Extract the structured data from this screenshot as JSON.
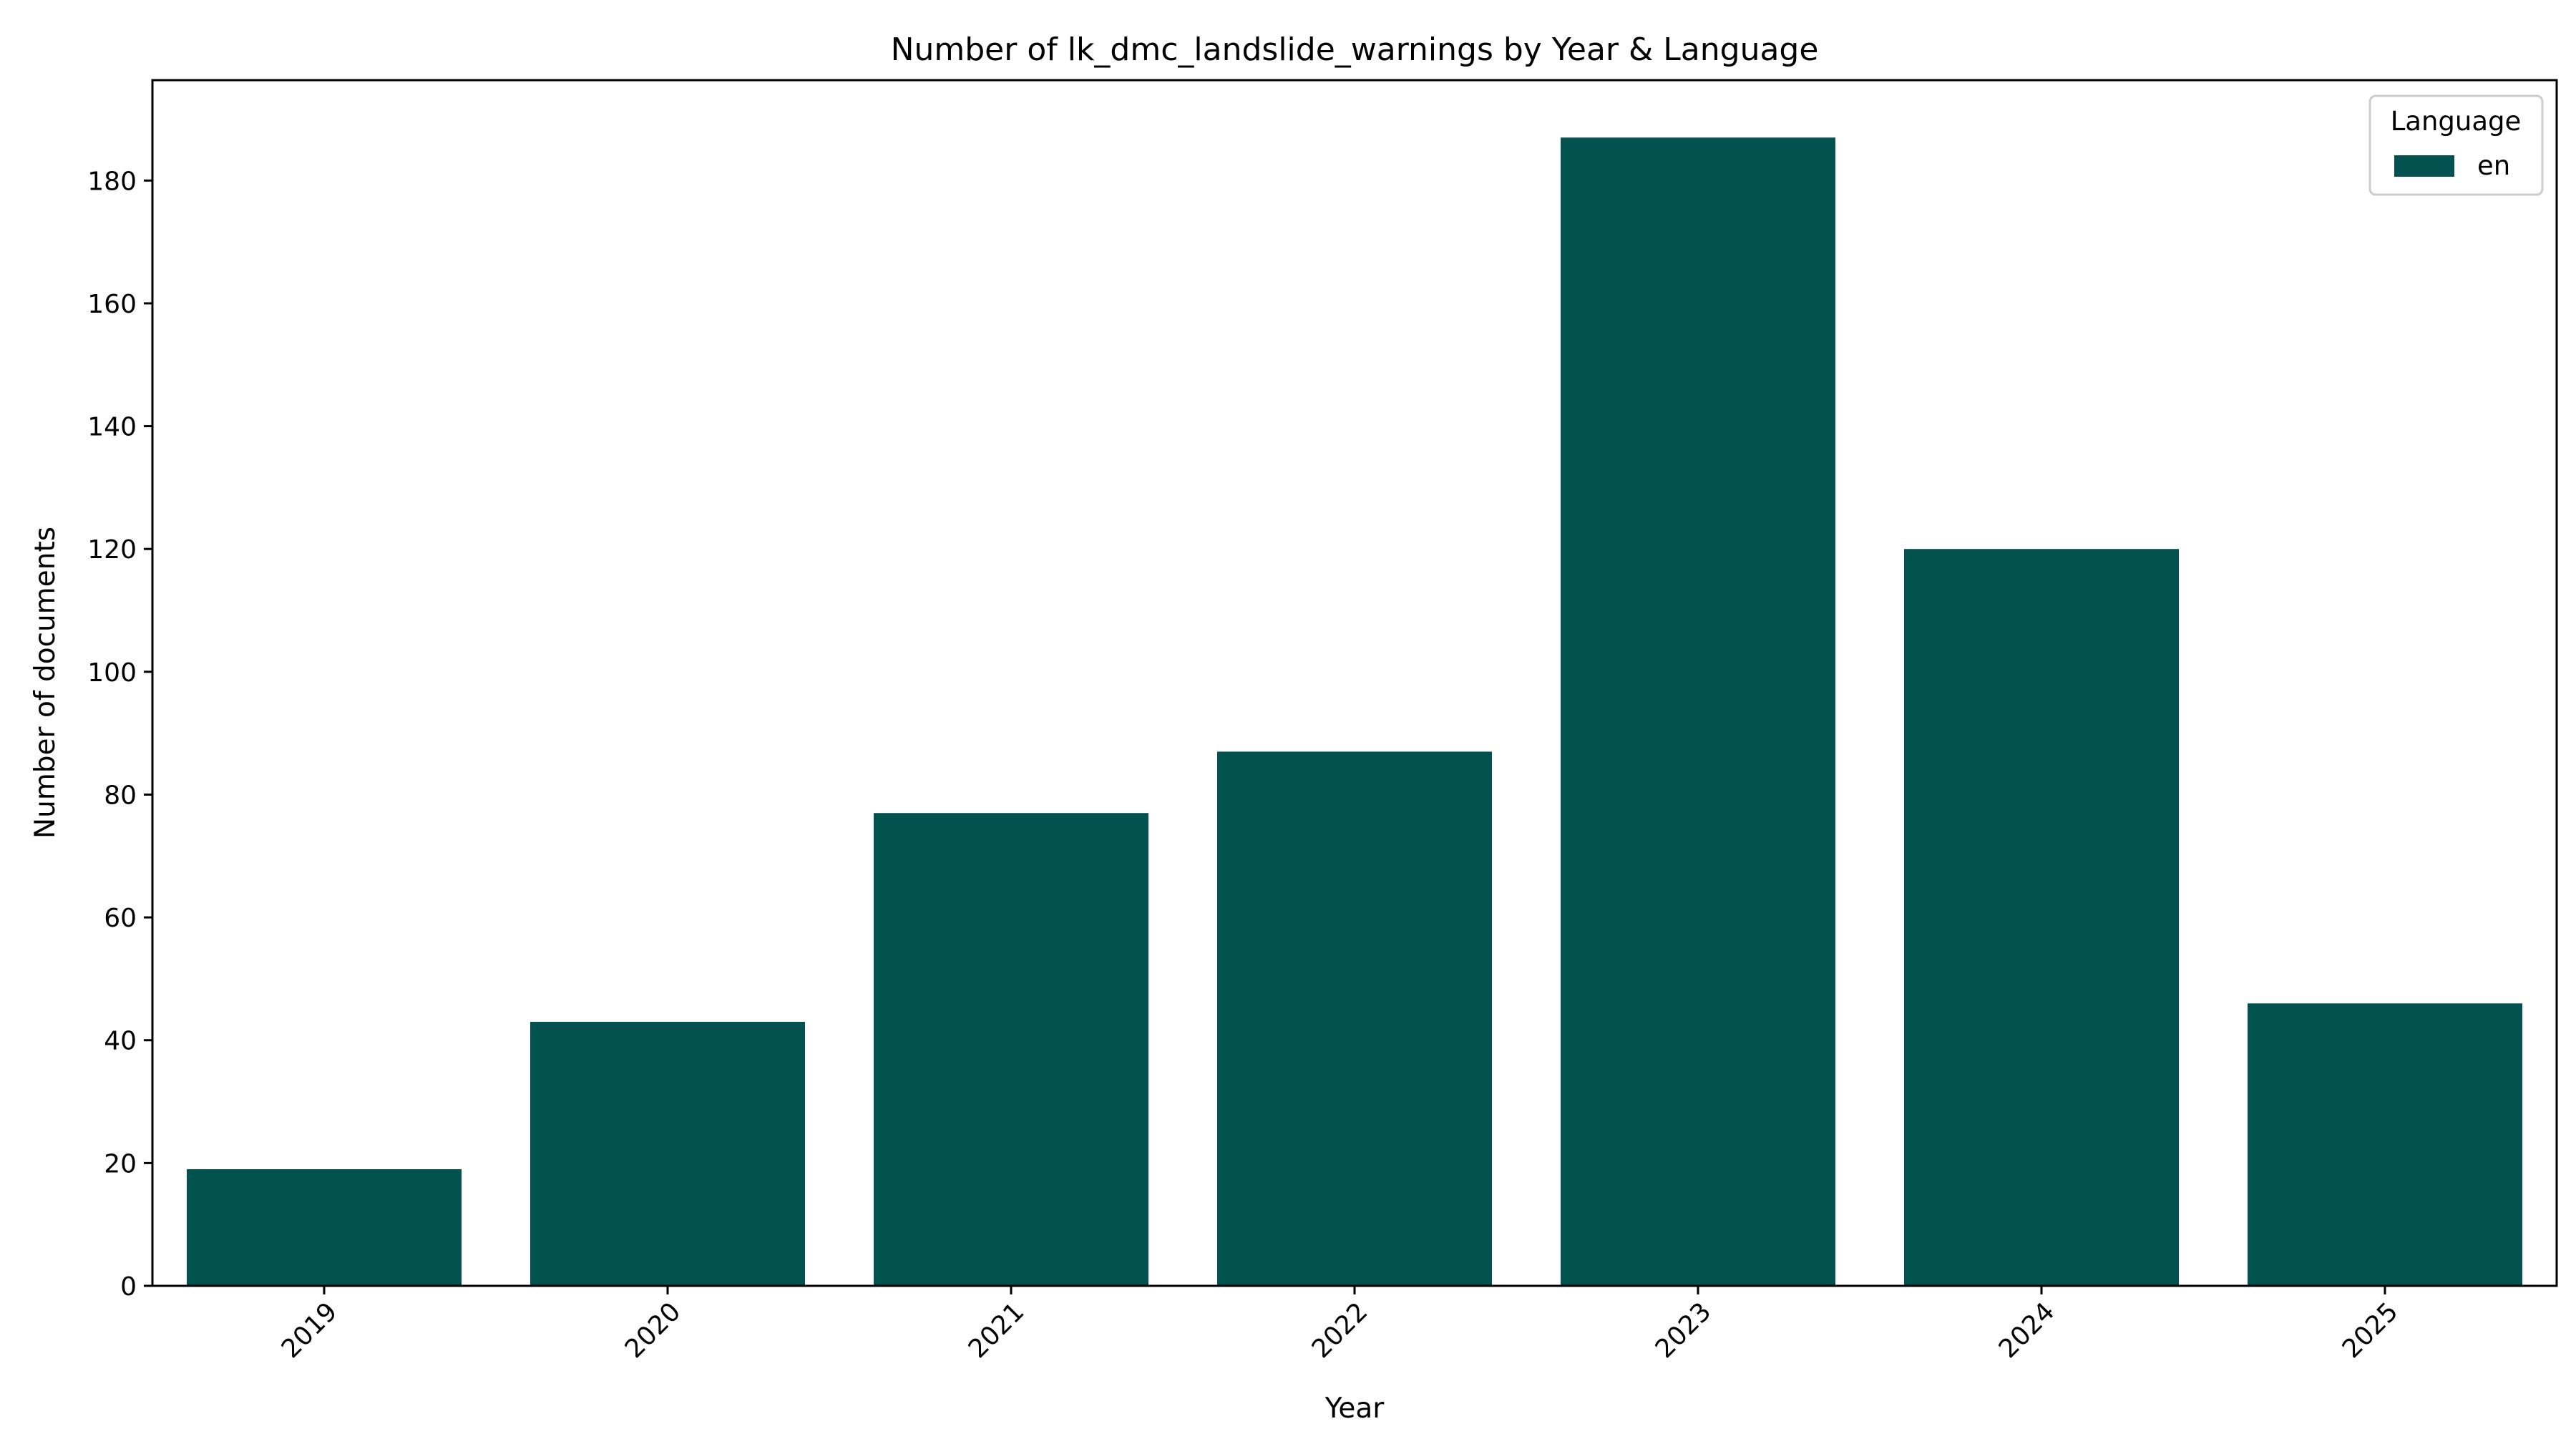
{
  "chart_data": {
    "type": "bar",
    "title": "Number of lk_dmc_landslide_warnings by Year & Language",
    "xlabel": "Year",
    "ylabel": "Number of documents",
    "categories": [
      "2019",
      "2020",
      "2021",
      "2022",
      "2023",
      "2024",
      "2025"
    ],
    "series": [
      {
        "name": "en",
        "values": [
          19,
          43,
          77,
          87,
          187,
          120,
          46
        ],
        "color": "#03524f"
      }
    ],
    "ylim": [
      0,
      196.35
    ],
    "yticks": [
      0,
      20,
      40,
      60,
      80,
      100,
      120,
      140,
      160,
      180
    ],
    "xtick_rotation": -45,
    "grid": false,
    "legend": {
      "title": "Language",
      "position": "top-right"
    }
  }
}
